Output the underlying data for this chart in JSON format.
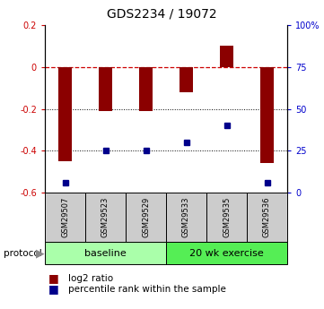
{
  "title": "GDS2234 / 19072",
  "samples": [
    "GSM29507",
    "GSM29523",
    "GSM29529",
    "GSM29533",
    "GSM29535",
    "GSM29536"
  ],
  "log2_ratio": [
    -0.45,
    -0.21,
    -0.21,
    -0.12,
    0.1,
    -0.46
  ],
  "percentile_rank_pct": [
    6,
    25,
    25,
    30,
    40,
    6
  ],
  "groups": [
    {
      "label": "baseline",
      "indices": [
        0,
        1,
        2
      ],
      "color": "#aaffaa"
    },
    {
      "label": "20 wk exercise",
      "indices": [
        3,
        4,
        5
      ],
      "color": "#55ee55"
    }
  ],
  "ylim": [
    -0.6,
    0.2
  ],
  "y2lim": [
    0,
    100
  ],
  "bar_color": "#8b0000",
  "dot_color": "#00008b",
  "zero_line_color": "#cc0000",
  "grid_color": "#000000",
  "bar_width": 0.35,
  "legend_items": [
    "log2 ratio",
    "percentile rank within the sample"
  ],
  "protocol_label": "protocol",
  "yticks_left": [
    -0.6,
    -0.4,
    -0.2,
    0.0,
    0.2
  ],
  "yticks_right": [
    0,
    25,
    50,
    75,
    100
  ],
  "ytick_labels_left": [
    "-0.6",
    "-0.4",
    "-0.2",
    "0",
    "0.2"
  ],
  "ytick_labels_right": [
    "0",
    "25",
    "50",
    "75",
    "100%"
  ],
  "sample_box_color": "#cccccc",
  "title_fontsize": 10,
  "tick_fontsize": 7,
  "sample_fontsize": 6,
  "group_fontsize": 8,
  "legend_fontsize": 7.5
}
